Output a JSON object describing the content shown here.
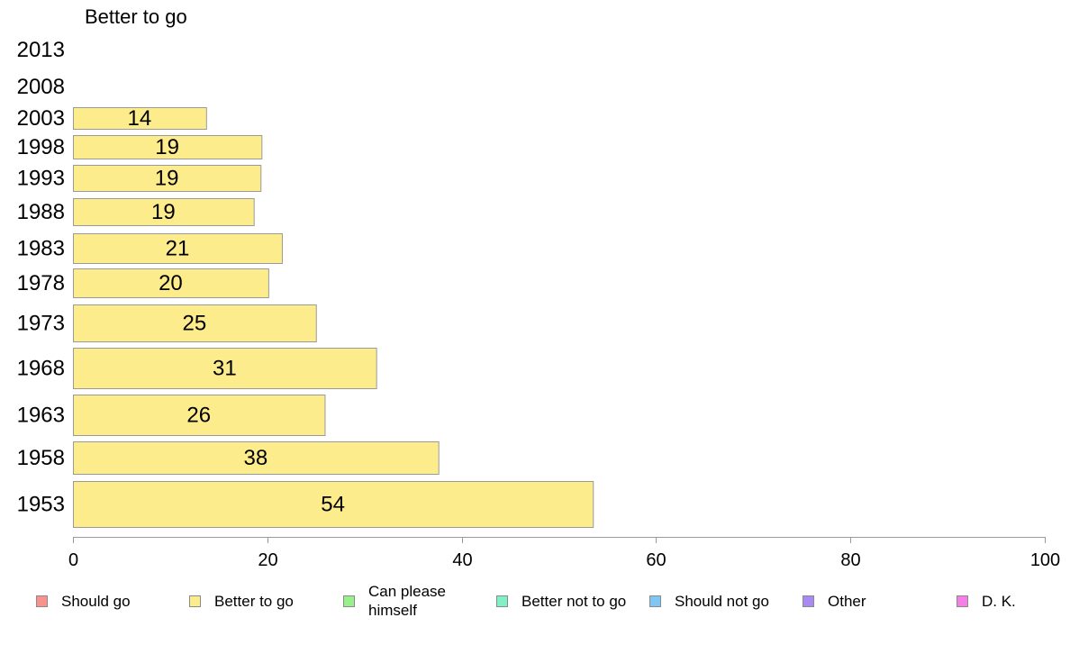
{
  "chart_data": {
    "type": "bar",
    "orientation": "horizontal",
    "title": "Better to go",
    "categories": [
      "2013",
      "2008",
      "2003",
      "1998",
      "1993",
      "1988",
      "1983",
      "1978",
      "1973",
      "1968",
      "1963",
      "1958",
      "1953"
    ],
    "series": [
      {
        "name": "Better to go",
        "color": "#fdec8c",
        "values": [
          null,
          null,
          13.7,
          19.4,
          19.3,
          18.6,
          21.5,
          20.1,
          25.0,
          31.2,
          25.9,
          37.6,
          53.5
        ],
        "labels": [
          "",
          "",
          "14",
          "19",
          "19",
          "19",
          "21",
          "20",
          "25",
          "31",
          "26",
          "38",
          "54"
        ]
      }
    ],
    "x_ticks": [
      "0",
      "20",
      "40",
      "60",
      "80",
      "100"
    ],
    "xlim": [
      0,
      100
    ],
    "grid": false,
    "legend_position": "bottom",
    "legend": [
      {
        "label": "Should go",
        "color": "#f7938c"
      },
      {
        "label": "Better to go",
        "color": "#fdec8c"
      },
      {
        "label": "Can please himself",
        "color": "#98f08a"
      },
      {
        "label": "Better not to go",
        "color": "#7ff1c5"
      },
      {
        "label": "Should not go",
        "color": "#7ec7f5"
      },
      {
        "label": "Other",
        "color": "#a98af3"
      },
      {
        "label": "D. K.",
        "color": "#f57fe6"
      }
    ]
  }
}
